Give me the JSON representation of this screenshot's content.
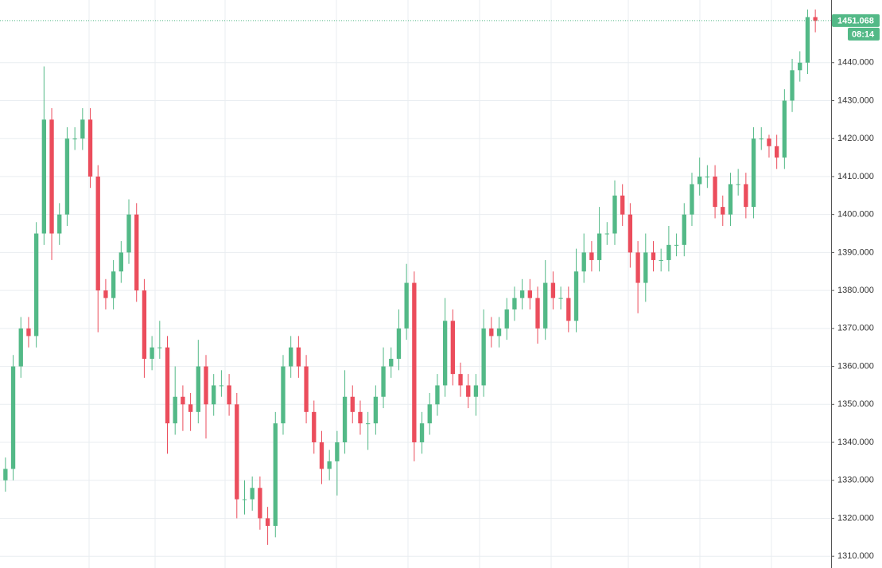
{
  "chart_data": {
    "type": "candlestick",
    "up_color": "#53b987",
    "down_color": "#eb4d5c",
    "open": [
      1330,
      1333,
      1360,
      1370,
      1368,
      1395,
      1425,
      1395,
      1400,
      1420,
      1420,
      1425,
      1410,
      1380,
      1378,
      1385,
      1390,
      1400,
      1380,
      1362,
      1365,
      1365,
      1345,
      1352,
      1350,
      1348,
      1360,
      1350,
      1355,
      1355,
      1350,
      1325,
      1325,
      1328,
      1320,
      1318,
      1345,
      1360,
      1365,
      1360,
      1348,
      1340,
      1333,
      1335,
      1340,
      1352,
      1348,
      1345,
      1345,
      1352,
      1360,
      1362,
      1370,
      1382,
      1340,
      1345,
      1350,
      1355,
      1372,
      1358,
      1355,
      1352,
      1355,
      1370,
      1368,
      1370,
      1375,
      1378,
      1380,
      1378,
      1370,
      1382,
      1378,
      1378,
      1372,
      1385,
      1390,
      1388,
      1395,
      1395,
      1405,
      1400,
      1390,
      1382,
      1390,
      1388,
      1388,
      1392,
      1392,
      1400,
      1408,
      1410,
      1410,
      1402,
      1400,
      1408,
      1408,
      1402,
      1420,
      1420,
      1418,
      1415,
      1430,
      1438,
      1440,
      1452
    ],
    "high": [
      1336,
      1363,
      1373,
      1373,
      1398,
      1439,
      1428,
      1403,
      1423,
      1423,
      1428,
      1428,
      1413,
      1383,
      1388,
      1393,
      1404,
      1403,
      1383,
      1368,
      1372,
      1368,
      1360,
      1355,
      1353,
      1367,
      1363,
      1358,
      1359,
      1358,
      1353,
      1330,
      1331,
      1331,
      1323,
      1348,
      1363,
      1368,
      1368,
      1363,
      1351,
      1343,
      1338,
      1343,
      1359,
      1355,
      1351,
      1348,
      1355,
      1365,
      1365,
      1375,
      1387,
      1385,
      1348,
      1353,
      1358,
      1378,
      1375,
      1361,
      1358,
      1358,
      1375,
      1373,
      1373,
      1378,
      1381,
      1383,
      1383,
      1381,
      1388,
      1385,
      1381,
      1381,
      1391,
      1395,
      1393,
      1402,
      1398,
      1409,
      1408,
      1403,
      1393,
      1395,
      1393,
      1391,
      1397,
      1395,
      1403,
      1411,
      1415,
      1413,
      1413,
      1405,
      1411,
      1412,
      1411,
      1423,
      1423,
      1421,
      1421,
      1433,
      1441,
      1443,
      1454,
      1454
    ],
    "low": [
      1327,
      1330,
      1357,
      1365,
      1365,
      1392,
      1388,
      1392,
      1397,
      1417,
      1417,
      1407,
      1369,
      1375,
      1375,
      1382,
      1387,
      1377,
      1357,
      1359,
      1362,
      1337,
      1342,
      1343,
      1343,
      1345,
      1341,
      1347,
      1352,
      1347,
      1320,
      1321,
      1322,
      1317,
      1313,
      1315,
      1342,
      1357,
      1357,
      1345,
      1337,
      1329,
      1330,
      1326,
      1337,
      1345,
      1342,
      1338,
      1342,
      1349,
      1357,
      1359,
      1367,
      1335,
      1337,
      1342,
      1347,
      1352,
      1355,
      1352,
      1349,
      1347,
      1352,
      1365,
      1365,
      1367,
      1372,
      1375,
      1375,
      1366,
      1367,
      1375,
      1375,
      1369,
      1369,
      1382,
      1385,
      1385,
      1392,
      1392,
      1397,
      1386,
      1374,
      1377,
      1385,
      1385,
      1385,
      1389,
      1389,
      1397,
      1405,
      1407,
      1399,
      1397,
      1397,
      1405,
      1399,
      1399,
      1417,
      1415,
      1412,
      1412,
      1427,
      1435,
      1437,
      1448
    ],
    "close": [
      1333,
      1360,
      1370,
      1368,
      1395,
      1425,
      1395,
      1400,
      1420,
      1420,
      1425,
      1410,
      1380,
      1378,
      1385,
      1390,
      1400,
      1380,
      1362,
      1365,
      1365,
      1345,
      1352,
      1350,
      1348,
      1360,
      1350,
      1355,
      1355,
      1350,
      1325,
      1325,
      1328,
      1320,
      1318,
      1345,
      1360,
      1365,
      1360,
      1348,
      1340,
      1333,
      1335,
      1340,
      1352,
      1348,
      1345,
      1345,
      1352,
      1360,
      1362,
      1370,
      1382,
      1340,
      1345,
      1350,
      1355,
      1372,
      1358,
      1355,
      1352,
      1355,
      1370,
      1368,
      1370,
      1375,
      1378,
      1380,
      1378,
      1370,
      1382,
      1378,
      1378,
      1372,
      1385,
      1390,
      1388,
      1395,
      1395,
      1405,
      1400,
      1390,
      1382,
      1390,
      1388,
      1388,
      1392,
      1392,
      1400,
      1408,
      1410,
      1410,
      1402,
      1400,
      1408,
      1408,
      1402,
      1420,
      1420,
      1418,
      1415,
      1430,
      1438,
      1440,
      1452,
      1451
    ],
    "last_price": 1451.068,
    "countdown": "08:14",
    "ylim": [
      1306.9,
      1456.5
    ],
    "yticks": [
      {
        "value": 1310,
        "label": "1310.000"
      },
      {
        "value": 1320,
        "label": "1320.000"
      },
      {
        "value": 1330,
        "label": "1330.000"
      },
      {
        "value": 1340,
        "label": "1340.000"
      },
      {
        "value": 1350,
        "label": "1350.000"
      },
      {
        "value": 1360,
        "label": "1360.000"
      },
      {
        "value": 1370,
        "label": "1370.000"
      },
      {
        "value": 1380,
        "label": "1380.000"
      },
      {
        "value": 1390,
        "label": "1390.000"
      },
      {
        "value": 1400,
        "label": "1400.000"
      },
      {
        "value": 1410,
        "label": "1410.000"
      },
      {
        "value": 1420,
        "label": "1420.000"
      },
      {
        "value": 1430,
        "label": "1430.000"
      },
      {
        "value": 1440,
        "label": "1440.000"
      }
    ],
    "grid": true
  }
}
